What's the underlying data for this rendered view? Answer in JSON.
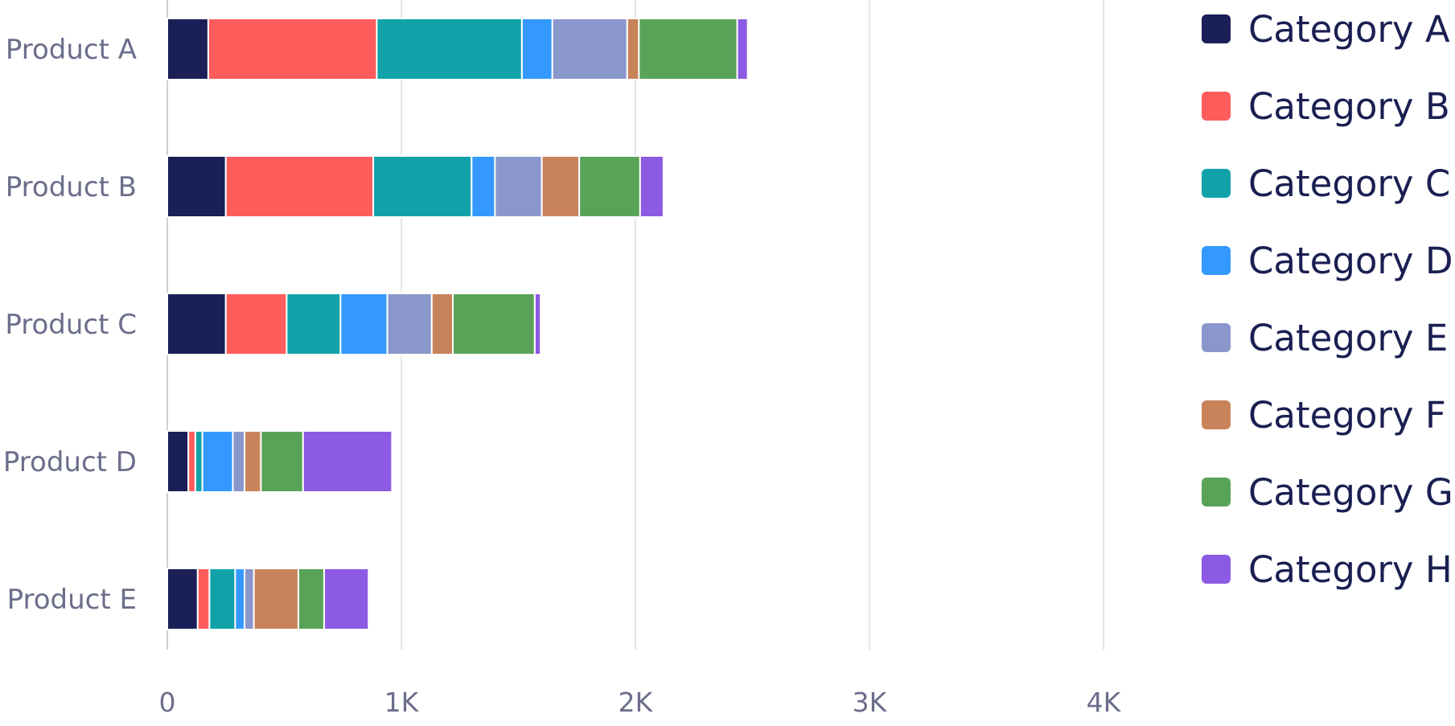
{
  "chart_data": {
    "type": "bar",
    "orientation": "horizontal",
    "stacked": true,
    "categories": [
      "Product A",
      "Product B",
      "Product C",
      "Product D",
      "Product E"
    ],
    "series": [
      {
        "name": "Category A",
        "color": "#1a1f57",
        "values": [
          175,
          250,
          250,
          90,
          130
        ]
      },
      {
        "name": "Category B",
        "color": "#ff5c5c",
        "values": [
          720,
          630,
          260,
          30,
          50
        ]
      },
      {
        "name": "Category C",
        "color": "#10a2a8",
        "values": [
          620,
          420,
          230,
          30,
          110
        ]
      },
      {
        "name": "Category D",
        "color": "#3399ff",
        "values": [
          130,
          100,
          200,
          130,
          40
        ]
      },
      {
        "name": "Category E",
        "color": "#8a97cc",
        "values": [
          320,
          200,
          190,
          50,
          40
        ]
      },
      {
        "name": "Category F",
        "color": "#c8835a",
        "values": [
          50,
          160,
          90,
          70,
          190
        ]
      },
      {
        "name": "Category G",
        "color": "#59a359",
        "values": [
          420,
          260,
          350,
          180,
          110
        ]
      },
      {
        "name": "Category H",
        "color": "#8c5ae3",
        "values": [
          45,
          100,
          25,
          380,
          190
        ]
      }
    ],
    "x_ticks": [
      "0",
      "1K",
      "2K",
      "3K",
      "4K"
    ],
    "xlim": [
      0,
      4000
    ],
    "grid": true,
    "legend": "right"
  }
}
